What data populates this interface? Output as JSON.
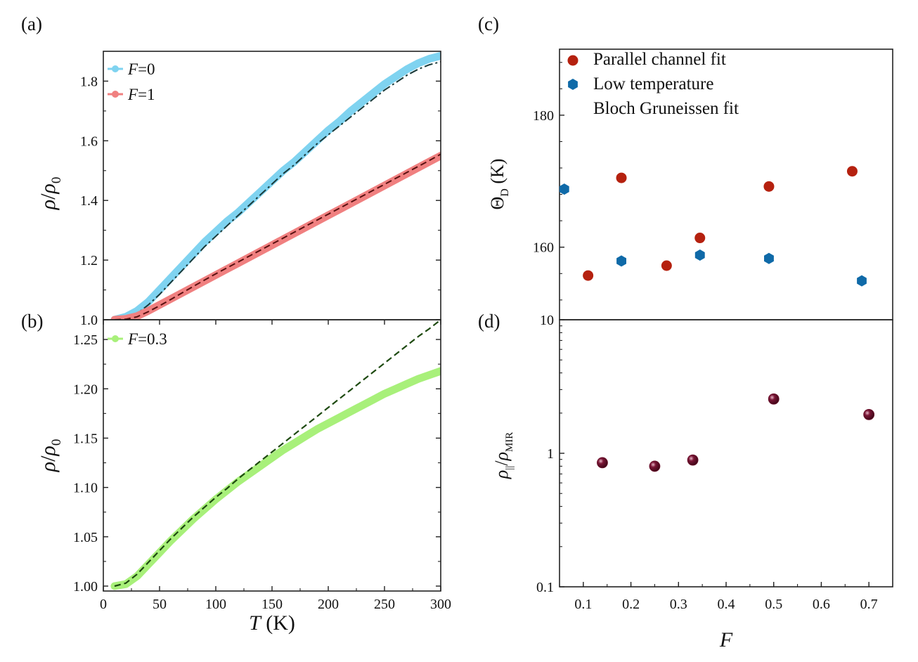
{
  "chart_data": [
    {
      "id": "a",
      "panel_label": "(a)",
      "type": "line",
      "xlabel": "T (K)",
      "ylabel": "ρ/ρ0",
      "xlim": [
        0,
        300
      ],
      "ylim": [
        1.0,
        1.9
      ],
      "yticks": [
        1.0,
        1.2,
        1.4,
        1.6,
        1.8
      ],
      "ytick_labels": [
        "1.0",
        "1.2",
        "1.4",
        "1.6",
        "1.8"
      ],
      "legend": "top-left",
      "series": [
        {
          "name": "F=0",
          "legend_italic": "F",
          "legend_rest": "=0",
          "color": "#7fd3f0",
          "x": [
            10,
            20,
            30,
            40,
            50,
            60,
            70,
            80,
            90,
            100,
            110,
            120,
            130,
            140,
            150,
            160,
            170,
            180,
            190,
            200,
            210,
            220,
            230,
            240,
            250,
            260,
            270,
            280,
            290,
            300
          ],
          "y": [
            1.0,
            1.01,
            1.03,
            1.06,
            1.1,
            1.14,
            1.18,
            1.22,
            1.26,
            1.295,
            1.33,
            1.36,
            1.395,
            1.43,
            1.465,
            1.5,
            1.53,
            1.565,
            1.6,
            1.635,
            1.665,
            1.7,
            1.73,
            1.76,
            1.79,
            1.815,
            1.84,
            1.86,
            1.875,
            1.885
          ],
          "fit": {
            "style": "dash-dot",
            "color": "#1a3a3a",
            "x": [
              10,
              20,
              30,
              40,
              50,
              60,
              70,
              80,
              90,
              100,
              110,
              120,
              130,
              140,
              150,
              160,
              170,
              180,
              190,
              200,
              210,
              220,
              230,
              240,
              250,
              260,
              270,
              280,
              290,
              300
            ],
            "y": [
              1.0,
              1.004,
              1.02,
              1.05,
              1.085,
              1.125,
              1.165,
              1.205,
              1.245,
              1.28,
              1.315,
              1.35,
              1.385,
              1.42,
              1.455,
              1.49,
              1.52,
              1.555,
              1.59,
              1.62,
              1.65,
              1.68,
              1.71,
              1.74,
              1.77,
              1.795,
              1.82,
              1.84,
              1.855,
              1.865
            ]
          }
        },
        {
          "name": "F=1",
          "legend_italic": "F",
          "legend_rest": "=1",
          "color": "#f08080",
          "x": [
            10,
            20,
            30,
            40,
            50,
            60,
            70,
            80,
            90,
            100,
            110,
            120,
            130,
            140,
            150,
            160,
            170,
            180,
            190,
            200,
            210,
            220,
            230,
            240,
            250,
            260,
            270,
            280,
            290,
            300
          ],
          "y": [
            1.0,
            1.003,
            1.012,
            1.03,
            1.05,
            1.07,
            1.09,
            1.11,
            1.13,
            1.15,
            1.17,
            1.19,
            1.21,
            1.23,
            1.25,
            1.27,
            1.29,
            1.31,
            1.33,
            1.35,
            1.37,
            1.39,
            1.41,
            1.43,
            1.45,
            1.47,
            1.49,
            1.51,
            1.53,
            1.55
          ],
          "fit": {
            "style": "dashed",
            "color": "#5a1010",
            "x": [
              10,
              20,
              30,
              40,
              50,
              60,
              70,
              80,
              90,
              100,
              110,
              120,
              130,
              140,
              150,
              160,
              170,
              180,
              190,
              200,
              210,
              220,
              230,
              240,
              250,
              260,
              270,
              280,
              290,
              300
            ],
            "y": [
              1.0,
              1.002,
              1.01,
              1.027,
              1.047,
              1.068,
              1.09,
              1.112,
              1.133,
              1.154,
              1.174,
              1.194,
              1.214,
              1.234,
              1.254,
              1.274,
              1.294,
              1.314,
              1.334,
              1.354,
              1.374,
              1.394,
              1.414,
              1.434,
              1.454,
              1.474,
              1.494,
              1.514,
              1.534,
              1.555
            ]
          }
        }
      ]
    },
    {
      "id": "b",
      "panel_label": "(b)",
      "type": "line",
      "xlabel": "T (K)",
      "xlabel_italic": "T",
      "xlabel_rest": " (K)",
      "ylabel": "ρ/ρ0",
      "xlim": [
        0,
        300
      ],
      "ylim": [
        0.995,
        1.27
      ],
      "xticks": [
        0,
        50,
        100,
        150,
        200,
        250,
        300
      ],
      "xtick_labels": [
        "0",
        "50",
        "100",
        "150",
        "200",
        "250",
        "300"
      ],
      "yticks": [
        1.0,
        1.05,
        1.1,
        1.15,
        1.2,
        1.25
      ],
      "ytick_labels": [
        "1.00",
        "1.05",
        "1.10",
        "1.15",
        "1.20",
        "1.25"
      ],
      "legend": "top-left",
      "series": [
        {
          "name": "F=0.3",
          "legend_italic": "F",
          "legend_rest": "=0.3",
          "color": "#a8f07a",
          "x": [
            10,
            20,
            30,
            40,
            50,
            60,
            70,
            80,
            90,
            100,
            110,
            120,
            130,
            140,
            150,
            160,
            170,
            180,
            190,
            200,
            210,
            220,
            230,
            240,
            250,
            260,
            270,
            280,
            290,
            300
          ],
          "y": [
            1.0,
            1.002,
            1.01,
            1.022,
            1.034,
            1.046,
            1.057,
            1.068,
            1.078,
            1.088,
            1.097,
            1.106,
            1.114,
            1.122,
            1.13,
            1.138,
            1.145,
            1.152,
            1.159,
            1.165,
            1.171,
            1.177,
            1.183,
            1.189,
            1.195,
            1.2,
            1.205,
            1.21,
            1.214,
            1.218
          ],
          "fit": {
            "style": "dashed",
            "color": "#1e4a10",
            "x": [
              10,
              20,
              30,
              40,
              50,
              60,
              70,
              80,
              90,
              100,
              110,
              120,
              130,
              140,
              150,
              160,
              170,
              180,
              190,
              200,
              210,
              220,
              230,
              240,
              250,
              260,
              270,
              280,
              290,
              300
            ],
            "y": [
              1.0,
              1.003,
              1.012,
              1.024,
              1.036,
              1.048,
              1.059,
              1.07,
              1.08,
              1.09,
              1.099,
              1.109,
              1.118,
              1.127,
              1.136,
              1.145,
              1.154,
              1.163,
              1.172,
              1.181,
              1.19,
              1.199,
              1.208,
              1.217,
              1.226,
              1.235,
              1.244,
              1.253,
              1.261,
              1.27
            ]
          }
        }
      ]
    },
    {
      "id": "c",
      "panel_label": "(c)",
      "type": "scatter",
      "ylabel": "ΘD (K)",
      "xlim": [
        0.05,
        0.75
      ],
      "ylim": [
        149,
        190
      ],
      "yticks": [
        160,
        180
      ],
      "ytick_labels": [
        "160",
        "180"
      ],
      "legend": "top-left",
      "series": [
        {
          "name": "Parallel channel fit",
          "marker": "circle",
          "color": "#b5210f",
          "x": [
            0.11,
            0.18,
            0.275,
            0.345,
            0.49,
            0.665
          ],
          "y": [
            155.7,
            170.5,
            157.2,
            161.4,
            169.2,
            171.5
          ]
        },
        {
          "name": "Low temperature",
          "name_line2": "Bloch Gruneissen fit",
          "marker": "hexagon",
          "color": "#0f6aa8",
          "x": [
            0.06,
            0.18,
            0.345,
            0.49,
            0.685
          ],
          "y": [
            168.8,
            157.9,
            158.8,
            158.3,
            154.9
          ]
        }
      ]
    },
    {
      "id": "d",
      "panel_label": "(d)",
      "type": "scatter",
      "xlabel": "F",
      "ylabel": "ρ||/ρMIR",
      "xlim": [
        0.05,
        0.75
      ],
      "ylim_log": [
        0.1,
        10
      ],
      "xticks": [
        0.1,
        0.2,
        0.3,
        0.4,
        0.5,
        0.6,
        0.7
      ],
      "xtick_labels": [
        "0.1",
        "0.2",
        "0.3",
        "0.4",
        "0.5",
        "0.6",
        "0.7"
      ],
      "yticks": [
        0.1,
        1,
        10
      ],
      "ytick_labels": [
        "0.1",
        "1",
        "10"
      ],
      "series": [
        {
          "name": "ρ||/ρMIR",
          "marker": "sphere",
          "color": "#6a0f2a",
          "x": [
            0.14,
            0.25,
            0.33,
            0.5,
            0.7
          ],
          "y": [
            0.85,
            0.8,
            0.89,
            2.55,
            1.95
          ]
        }
      ]
    }
  ]
}
